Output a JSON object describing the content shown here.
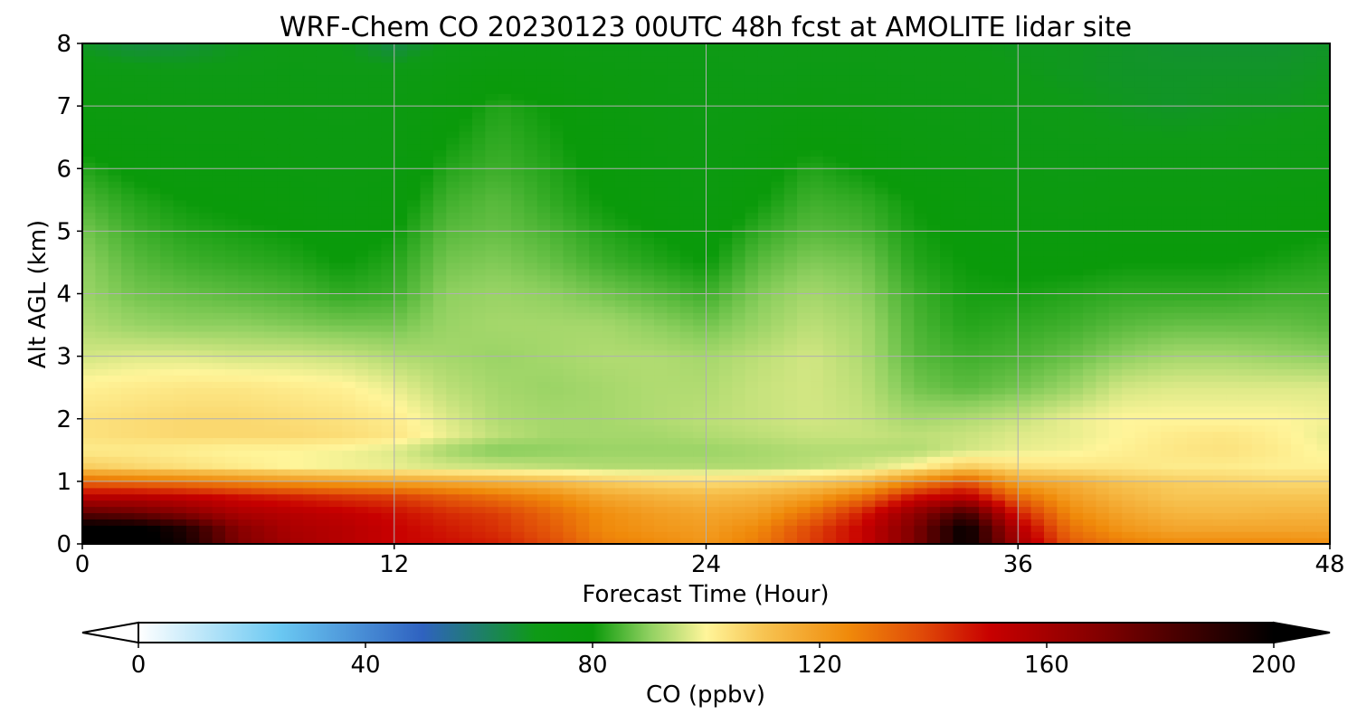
{
  "chart_data": {
    "type": "heatmap",
    "title": "WRF-Chem CO  20230123 00UTC 48h fcst at AMOLITE lidar site",
    "xlabel": "Forecast Time (Hour)",
    "ylabel": "Alt AGL (km)",
    "xlim": [
      0,
      48
    ],
    "ylim": [
      0,
      8
    ],
    "x_ticks": [
      0,
      12,
      24,
      36,
      48
    ],
    "y_ticks": [
      0,
      1,
      2,
      3,
      4,
      5,
      6,
      7,
      8
    ],
    "grid": true,
    "colorbar": {
      "label": "CO  (ppbv)",
      "range": [
        0,
        200
      ],
      "ticks": [
        0,
        40,
        80,
        120,
        160,
        200
      ],
      "extend": "both",
      "colors": [
        {
          "value": 0,
          "color": "#ffffff"
        },
        {
          "value": 25,
          "color": "#6ac8f2"
        },
        {
          "value": 50,
          "color": "#2f62c0"
        },
        {
          "value": 70,
          "color": "#0e9a16"
        },
        {
          "value": 80,
          "color": "#0a9a0a"
        },
        {
          "value": 90,
          "color": "#8fd060"
        },
        {
          "value": 100,
          "color": "#fff59a"
        },
        {
          "value": 110,
          "color": "#f7c452"
        },
        {
          "value": 125,
          "color": "#f08a0a"
        },
        {
          "value": 138,
          "color": "#e04a08"
        },
        {
          "value": 150,
          "color": "#c80000"
        },
        {
          "value": 170,
          "color": "#800000"
        },
        {
          "value": 200,
          "color": "#000000"
        }
      ]
    },
    "x_hours": [
      0,
      2,
      4,
      6,
      8,
      10,
      12,
      14,
      16,
      18,
      20,
      22,
      24,
      26,
      28,
      30,
      32,
      34,
      36,
      38,
      40,
      42,
      44,
      46,
      48
    ],
    "y_km": [
      0,
      0.25,
      0.5,
      0.75,
      1,
      1.25,
      1.5,
      1.75,
      2,
      2.5,
      3,
      3.5,
      4,
      4.5,
      5,
      5.5,
      6,
      6.5,
      7,
      7.5,
      8
    ],
    "values_ppbv": [
      [
        205,
        205,
        195,
        170,
        160,
        155,
        150,
        148,
        145,
        138,
        128,
        125,
        122,
        128,
        140,
        150,
        170,
        200,
        160,
        135,
        128,
        125,
        125,
        125,
        124
      ],
      [
        205,
        203,
        192,
        168,
        158,
        155,
        150,
        146,
        142,
        135,
        125,
        122,
        120,
        125,
        138,
        150,
        170,
        200,
        155,
        130,
        122,
        118,
        118,
        118,
        118
      ],
      [
        178,
        175,
        168,
        158,
        155,
        152,
        148,
        143,
        140,
        132,
        124,
        120,
        118,
        120,
        130,
        145,
        165,
        185,
        145,
        125,
        118,
        114,
        113,
        114,
        114
      ],
      [
        155,
        155,
        152,
        148,
        145,
        142,
        140,
        135,
        130,
        125,
        118,
        115,
        113,
        115,
        120,
        130,
        148,
        155,
        132,
        120,
        114,
        110,
        110,
        110,
        110
      ],
      [
        132,
        130,
        128,
        125,
        122,
        120,
        118,
        116,
        114,
        112,
        108,
        106,
        105,
        106,
        108,
        112,
        125,
        135,
        118,
        115,
        110,
        108,
        107,
        106,
        106
      ],
      [
        108,
        106,
        104,
        102,
        100,
        99,
        98,
        96,
        95,
        94,
        93,
        93,
        93,
        93,
        94,
        96,
        100,
        108,
        104,
        103,
        103,
        102,
        102,
        101,
        101
      ],
      [
        102,
        102,
        101,
        100,
        100,
        99,
        97,
        92,
        89,
        90,
        91,
        91,
        91,
        92,
        93,
        93,
        93,
        96,
        98,
        99,
        101,
        103,
        104,
        102,
        99
      ],
      [
        104,
        105,
        106,
        106,
        106,
        105,
        103,
        98,
        94,
        92,
        92,
        92,
        93,
        94,
        95,
        95,
        94,
        95,
        97,
        98,
        100,
        102,
        103,
        101,
        98
      ],
      [
        104,
        105,
        106,
        106,
        105,
        104,
        102,
        97,
        93,
        92,
        92,
        93,
        94,
        95,
        96,
        95,
        92,
        93,
        95,
        98,
        100,
        100,
        100,
        100,
        99
      ],
      [
        101,
        102,
        103,
        103,
        102,
        101,
        98,
        94,
        92,
        91,
        92,
        93,
        93,
        95,
        96,
        94,
        88,
        86,
        88,
        91,
        96,
        97,
        97,
        97,
        97
      ],
      [
        96,
        97,
        97,
        96,
        96,
        95,
        93,
        92,
        91,
        92,
        93,
        93,
        92,
        94,
        96,
        93,
        86,
        84,
        85,
        87,
        90,
        92,
        92,
        91,
        90
      ],
      [
        93,
        91,
        90,
        90,
        89,
        88,
        88,
        91,
        92,
        92,
        92,
        90,
        88,
        91,
        94,
        92,
        85,
        82,
        83,
        84,
        86,
        87,
        87,
        87,
        86
      ],
      [
        91,
        88,
        87,
        86,
        85,
        83,
        84,
        90,
        91,
        90,
        88,
        86,
        84,
        89,
        92,
        90,
        84,
        81,
        81,
        82,
        83,
        83,
        83,
        84,
        84
      ],
      [
        90,
        86,
        84,
        83,
        82,
        80,
        82,
        88,
        89,
        87,
        84,
        82,
        80,
        86,
        89,
        88,
        82,
        80,
        79,
        79,
        80,
        80,
        80,
        81,
        82
      ],
      [
        88,
        84,
        82,
        81,
        80,
        78,
        80,
        86,
        87,
        85,
        82,
        80,
        78,
        83,
        86,
        85,
        81,
        79,
        78,
        77,
        78,
        78,
        78,
        79,
        80
      ],
      [
        85,
        82,
        80,
        79,
        78,
        76,
        78,
        84,
        86,
        83,
        80,
        78,
        76,
        80,
        84,
        83,
        80,
        78,
        76,
        75,
        76,
        76,
        76,
        77,
        78
      ],
      [
        82,
        79,
        77,
        77,
        76,
        75,
        76,
        82,
        84,
        82,
        79,
        77,
        75,
        78,
        82,
        80,
        77,
        76,
        74,
        73,
        73,
        73,
        73,
        74,
        75
      ],
      [
        78,
        77,
        76,
        76,
        75,
        74,
        75,
        80,
        83,
        81,
        78,
        76,
        74,
        76,
        79,
        78,
        75,
        74,
        72,
        71,
        70,
        70,
        70,
        71,
        72
      ],
      [
        76,
        75,
        74,
        74,
        74,
        73,
        74,
        78,
        82,
        80,
        77,
        75,
        73,
        74,
        76,
        75,
        73,
        72,
        71,
        70,
        69,
        68,
        69,
        69,
        70
      ],
      [
        73,
        72,
        71,
        71,
        72,
        71,
        72,
        75,
        78,
        77,
        75,
        74,
        72,
        71,
        72,
        72,
        71,
        71,
        70,
        69,
        68,
        68,
        68,
        68,
        69
      ],
      [
        68,
        65,
        66,
        69,
        70,
        70,
        64,
        70,
        72,
        73,
        72,
        71,
        71,
        70,
        70,
        70,
        70,
        70,
        69,
        69,
        68,
        67,
        67,
        67,
        68
      ]
    ]
  }
}
